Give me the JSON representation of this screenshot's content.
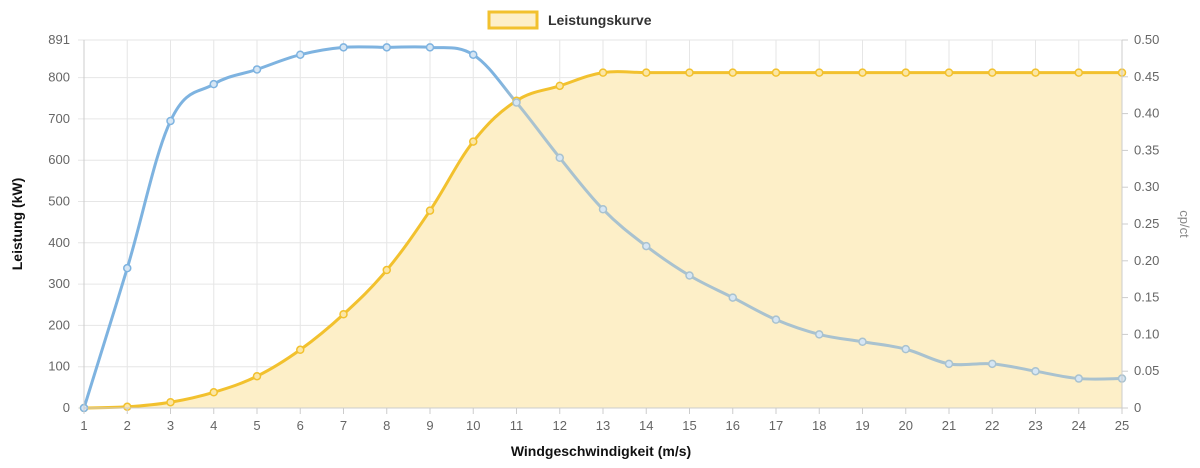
{
  "chart_data": {
    "type": "line",
    "x": [
      1,
      2,
      3,
      4,
      5,
      6,
      7,
      8,
      9,
      10,
      11,
      12,
      13,
      14,
      15,
      16,
      17,
      18,
      19,
      20,
      21,
      22,
      23,
      24,
      25
    ],
    "xlabel": "Windgeschwindigkeit (m/s)",
    "ylabel": "Leistung (kW)",
    "y2label": "cp/ct",
    "ylim": [
      0,
      891
    ],
    "y_ticks": [
      "0",
      "100",
      "200",
      "300",
      "400",
      "500",
      "600",
      "700",
      "800",
      "891"
    ],
    "y2lim": [
      0,
      0.5
    ],
    "y2_ticks": [
      "0",
      "0.05",
      "0.10",
      "0.15",
      "0.20",
      "0.25",
      "0.30",
      "0.35",
      "0.40",
      "0.45",
      "0.50"
    ],
    "grid": true,
    "legend_position": "top",
    "legend": [
      "Leistungskurve"
    ],
    "series": [
      {
        "name": "Leistungskurve",
        "axis": "left",
        "fill": true,
        "color": "#f2c12e",
        "fill_color": "#fdefc8",
        "values": [
          0,
          3,
          14,
          38,
          77,
          141,
          227,
          334,
          478,
          645,
          744,
          780,
          812,
          812,
          812,
          812,
          812,
          812,
          812,
          812,
          812,
          812,
          812,
          812,
          812
        ]
      },
      {
        "axis": "right",
        "fill": false,
        "color": "#7eb3e0",
        "color_late": "#a9c2cf",
        "values": [
          0,
          0.19,
          0.39,
          0.44,
          0.46,
          0.48,
          0.49,
          0.49,
          0.49,
          0.48,
          0.415,
          0.34,
          0.27,
          0.22,
          0.18,
          0.15,
          0.12,
          0.1,
          0.09,
          0.08,
          0.06,
          0.06,
          0.05,
          0.04,
          0.04
        ]
      }
    ]
  }
}
